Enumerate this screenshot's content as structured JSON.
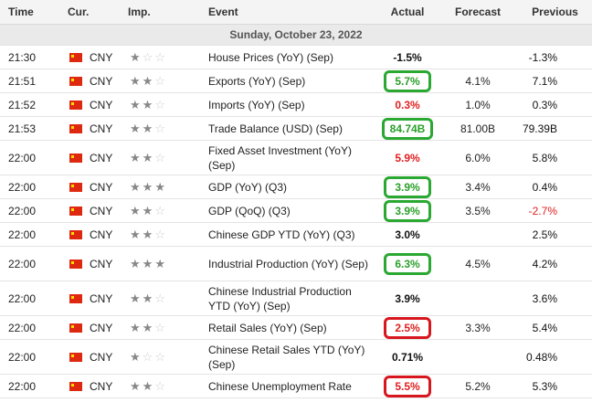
{
  "columns": {
    "time": "Time",
    "currency": "Cur.",
    "importance": "Imp.",
    "event": "Event",
    "actual": "Actual",
    "forecast": "Forecast",
    "previous": "Previous"
  },
  "date_header": "Sunday, October 23, 2022",
  "colors": {
    "green": "#2aa02a",
    "red": "#e02020",
    "ring_green": "#2aa831",
    "ring_red": "#d8161e"
  },
  "rows": [
    {
      "time": "21:30",
      "currency": "CNY",
      "stars": 1,
      "event": "House Prices (YoY) (Sep)",
      "actual": "-1.5%",
      "actual_color": "black",
      "forecast": "",
      "previous": "-1.3%",
      "previous_color": "black",
      "ring": "",
      "tall": false
    },
    {
      "time": "21:51",
      "currency": "CNY",
      "stars": 2,
      "event": "Exports (YoY) (Sep)",
      "actual": "5.7%",
      "actual_color": "green",
      "forecast": "4.1%",
      "previous": "7.1%",
      "previous_color": "black",
      "ring": "g",
      "tall": false
    },
    {
      "time": "21:52",
      "currency": "CNY",
      "stars": 2,
      "event": "Imports (YoY) (Sep)",
      "actual": "0.3%",
      "actual_color": "red",
      "forecast": "1.0%",
      "previous": "0.3%",
      "previous_color": "black",
      "ring": "",
      "tall": false
    },
    {
      "time": "21:53",
      "currency": "CNY",
      "stars": 2,
      "event": "Trade Balance (USD) (Sep)",
      "actual": "84.74B",
      "actual_color": "green",
      "forecast": "81.00B",
      "previous": "79.39B",
      "previous_color": "black",
      "ring": "g",
      "tall": false
    },
    {
      "time": "22:00",
      "currency": "CNY",
      "stars": 2,
      "event": "Fixed Asset Investment (YoY) (Sep)",
      "actual": "5.9%",
      "actual_color": "red",
      "forecast": "6.0%",
      "previous": "5.8%",
      "previous_color": "black",
      "ring": "",
      "tall": true
    },
    {
      "time": "22:00",
      "currency": "CNY",
      "stars": 3,
      "event": "GDP (YoY) (Q3)",
      "actual": "3.9%",
      "actual_color": "green",
      "forecast": "3.4%",
      "previous": "0.4%",
      "previous_color": "black",
      "ring": "g",
      "tall": false
    },
    {
      "time": "22:00",
      "currency": "CNY",
      "stars": 2,
      "event": "GDP (QoQ) (Q3)",
      "actual": "3.9%",
      "actual_color": "green",
      "forecast": "3.5%",
      "previous": "-2.7%",
      "previous_color": "red",
      "ring": "g",
      "tall": false
    },
    {
      "time": "22:00",
      "currency": "CNY",
      "stars": 2,
      "event": "Chinese GDP YTD (YoY) (Q3)",
      "actual": "3.0%",
      "actual_color": "black",
      "forecast": "",
      "previous": "2.5%",
      "previous_color": "black",
      "ring": "",
      "tall": false
    },
    {
      "time": "22:00",
      "currency": "CNY",
      "stars": 3,
      "event": "Industrial Production (YoY) (Sep)",
      "actual": "6.3%",
      "actual_color": "green",
      "forecast": "4.5%",
      "previous": "4.2%",
      "previous_color": "black",
      "ring": "g",
      "tall": true
    },
    {
      "time": "22:00",
      "currency": "CNY",
      "stars": 2,
      "event": "Chinese Industrial Production YTD (YoY) (Sep)",
      "actual": "3.9%",
      "actual_color": "black",
      "forecast": "",
      "previous": "3.6%",
      "previous_color": "black",
      "ring": "",
      "tall": true
    },
    {
      "time": "22:00",
      "currency": "CNY",
      "stars": 2,
      "event": "Retail Sales (YoY) (Sep)",
      "actual": "2.5%",
      "actual_color": "red",
      "forecast": "3.3%",
      "previous": "5.4%",
      "previous_color": "black",
      "ring": "r",
      "tall": false
    },
    {
      "time": "22:00",
      "currency": "CNY",
      "stars": 1,
      "event": "Chinese Retail Sales YTD (YoY) (Sep)",
      "actual": "0.71%",
      "actual_color": "black",
      "forecast": "",
      "previous": "0.48%",
      "previous_color": "black",
      "ring": "",
      "tall": true
    },
    {
      "time": "22:00",
      "currency": "CNY",
      "stars": 2,
      "event": "Chinese Unemployment Rate",
      "actual": "5.5%",
      "actual_color": "red",
      "forecast": "5.2%",
      "previous": "5.3%",
      "previous_color": "black",
      "ring": "r",
      "tall": false
    }
  ]
}
